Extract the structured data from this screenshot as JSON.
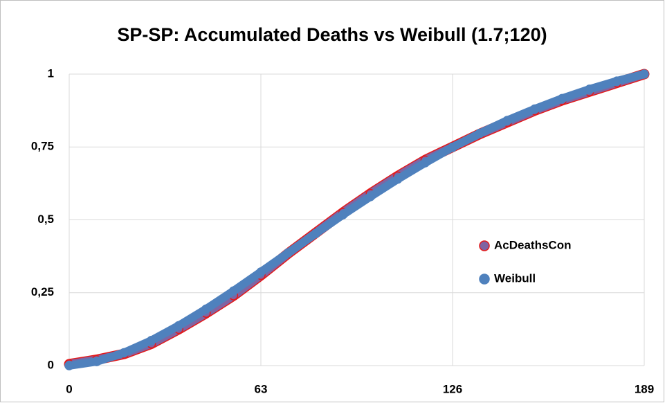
{
  "chart_data": {
    "type": "scatter",
    "title": "SP-SP: Accumulated Deaths vs Weibull (1.7;120)",
    "xlim": [
      0,
      189
    ],
    "xticks": [
      0,
      63,
      126,
      189
    ],
    "ylim": [
      0,
      1
    ],
    "yticks": [
      0,
      {
        "value": 0.25,
        "label": "0,25"
      },
      {
        "value": 0.5,
        "label": "0,5"
      },
      {
        "value": 0.75,
        "label": "0,75"
      },
      1
    ],
    "grid": true,
    "legend": "right",
    "series": [
      {
        "name": "AcDeathsCon",
        "color": "#8064a2",
        "edge_color": "#e31a1c",
        "x": [
          0,
          9,
          18,
          27,
          36,
          45,
          54,
          63,
          72,
          81,
          90,
          99,
          108,
          117,
          126,
          135,
          144,
          153,
          162,
          171,
          180,
          189
        ],
        "values": [
          0.005,
          0.02,
          0.04,
          0.075,
          0.125,
          0.18,
          0.24,
          0.31,
          0.385,
          0.455,
          0.525,
          0.59,
          0.65,
          0.705,
          0.75,
          0.795,
          0.835,
          0.875,
          0.91,
          0.94,
          0.97,
          1
        ]
      },
      {
        "name": "Weibull",
        "color": "#4f81bd",
        "x": [
          0,
          9,
          18,
          27,
          36,
          45,
          54,
          63,
          72,
          81,
          90,
          99,
          108,
          117,
          126,
          135,
          144,
          153,
          162,
          171,
          180,
          189
        ],
        "values": [
          0,
          0.014,
          0.044,
          0.086,
          0.137,
          0.194,
          0.256,
          0.321,
          0.387,
          0.453,
          0.518,
          0.58,
          0.64,
          0.696,
          0.749,
          0.797,
          0.841,
          0.88,
          0.916,
          0.948,
          0.976,
          1
        ]
      }
    ]
  }
}
